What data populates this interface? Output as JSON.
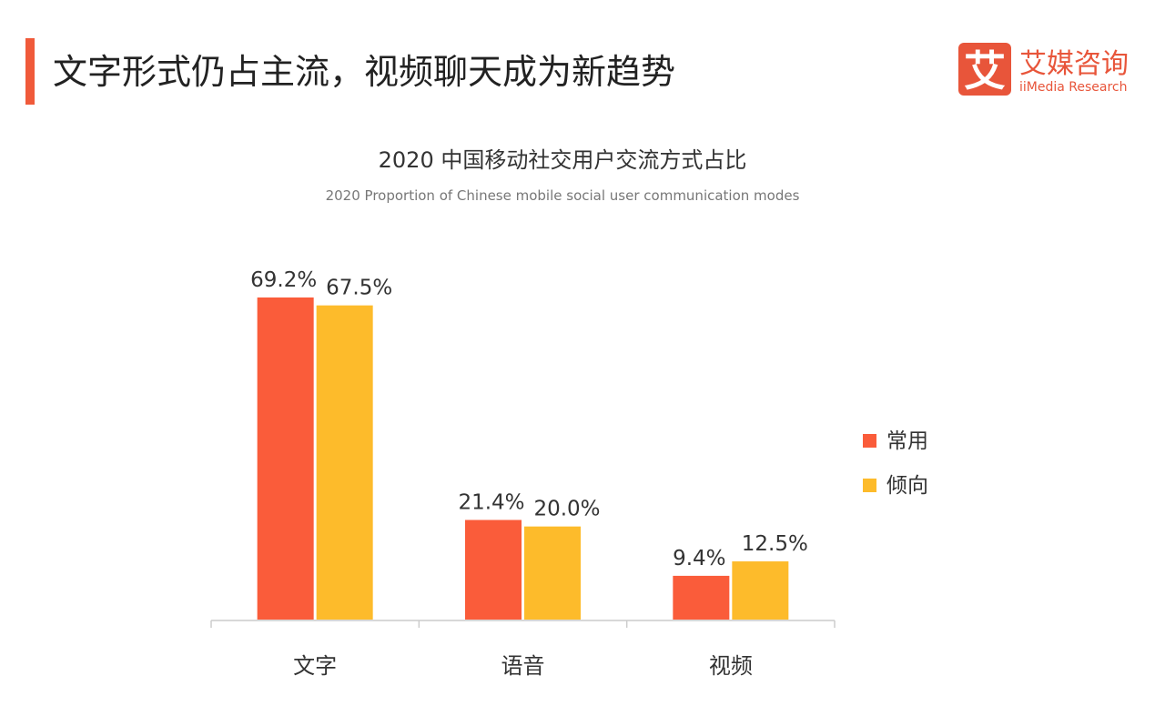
{
  "header": {
    "title": "文字形式仍占主流，视频聊天成为新趋势",
    "accent_color": "#f05a3a"
  },
  "logo": {
    "glyph": "艾",
    "name_cn": "艾媒咨询",
    "name_en": "iiMedia Research"
  },
  "chart_data": {
    "type": "bar",
    "title": "2020 中国移动社交用户交流方式占比",
    "subtitle": "2020 Proportion of Chinese mobile social user communication modes",
    "categories": [
      "文字",
      "语音",
      "视频"
    ],
    "series": [
      {
        "name": "常用",
        "color": "#fa5c3a",
        "values": [
          69.2,
          21.4,
          9.4
        ],
        "labels": [
          "69.2%",
          "21.4%",
          "9.4%"
        ]
      },
      {
        "name": "倾向",
        "color": "#fdbb2b",
        "values": [
          67.5,
          20.0,
          12.5
        ],
        "labels": [
          "67.5%",
          "20.0%",
          "12.5%"
        ]
      }
    ],
    "unit": "%",
    "ylim": [
      0,
      80
    ],
    "grid": false,
    "y_axis_shown": false,
    "legend_position": "right"
  }
}
